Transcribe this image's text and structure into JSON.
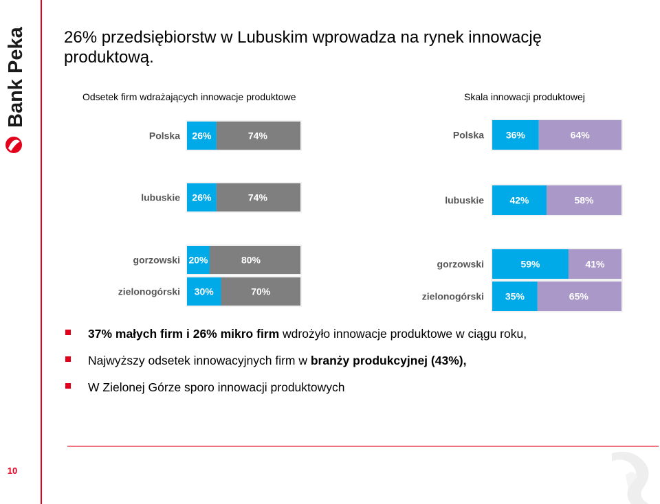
{
  "brand": {
    "name": "Bank Pekao",
    "accent": "#e2001a"
  },
  "page_number": "10",
  "title": "26% przedsiębiorstw w Lubuskim wprowadza na rynek innowację produktową.",
  "chart_data": [
    {
      "type": "bar",
      "stacked": true,
      "orientation": "horizontal",
      "title": "Odsetek firm wdrażających innowacje produktowe",
      "categories": [
        "Polska",
        "lubuskie",
        "gorzowski",
        "zielonogórski"
      ],
      "series": [
        {
          "values": [
            26,
            26,
            20,
            30
          ],
          "labels": [
            "26%",
            "26%",
            "20%",
            "30%"
          ],
          "color": "#00a9e8"
        },
        {
          "values": [
            74,
            74,
            80,
            70
          ],
          "labels": [
            "74%",
            "74%",
            "80%",
            "70%"
          ],
          "color": "#7f7f7f"
        }
      ],
      "xlim": [
        0,
        100
      ]
    },
    {
      "type": "bar",
      "stacked": true,
      "orientation": "horizontal",
      "title": "Skala innowacji produktowej",
      "categories": [
        "Polska",
        "lubuskie",
        "gorzowski",
        "zielonogórski"
      ],
      "series": [
        {
          "values": [
            36,
            42,
            59,
            35
          ],
          "labels": [
            "36%",
            "42%",
            "59%",
            "35%"
          ],
          "color": "#00a9e8"
        },
        {
          "values": [
            64,
            58,
            41,
            65
          ],
          "labels": [
            "64%",
            "58%",
            "41%",
            "65%"
          ],
          "color": "#aa99c8"
        }
      ],
      "xlim": [
        0,
        100
      ]
    }
  ],
  "bullets": [
    [
      {
        "text": "37% małych firm i 26% mikro firm",
        "bold": true
      },
      {
        "text": "  wdrożyło innowacje produktowe w ciągu roku,",
        "bold": false
      }
    ],
    [
      {
        "text": "Najwyższy odsetek innowacyjnych firm w ",
        "bold": false
      },
      {
        "text": "branży produkcyjnej (43%),",
        "bold": true
      }
    ],
    [
      {
        "text": "W Zielonej Górze sporo innowacji produktowych",
        "bold": false
      }
    ]
  ]
}
